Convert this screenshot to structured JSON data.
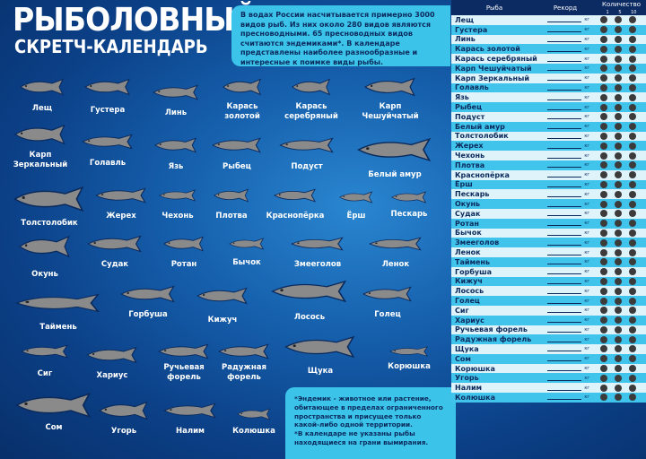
{
  "title": {
    "line1": "РЫБОЛОВНЫЙ",
    "line2": "СКРЕТЧ-КАЛЕНДАРЬ"
  },
  "info": "В водах России насчитывается примерно 3000 видов рыб. Из них около 280 видов являются пресноводными. 65 пресноводных видов считаются эндемиками*. В календаре представлены наиболее разнообразные и интересные к поимке виды рыбы.",
  "note": {
    "line1": "*Эндемик - животное или растение, обитающее в пределах ограниченного пространства и присущее только какой-либо одной территории.",
    "line2": "*В календаре не указаны рыбы находящиеся на грани вымирания."
  },
  "fish": [
    {
      "label": "Лещ"
    },
    {
      "label": "Густера"
    },
    {
      "label": "Линь"
    },
    {
      "label": "Карась золотой"
    },
    {
      "label": "Карась серебряный"
    },
    {
      "label": "Карп Чешуйчатый"
    },
    {
      "label": "Карп Зеркальный"
    },
    {
      "label": "Голавль"
    },
    {
      "label": "Язь"
    },
    {
      "label": "Рыбец"
    },
    {
      "label": "Подуст"
    },
    {
      "label": "Белый амур"
    },
    {
      "label": "Толстолобик"
    },
    {
      "label": "Жерех"
    },
    {
      "label": "Чехонь"
    },
    {
      "label": "Плотва"
    },
    {
      "label": "Краснопёрка"
    },
    {
      "label": "Ёрш"
    },
    {
      "label": "Пескарь"
    },
    {
      "label": "Окунь"
    },
    {
      "label": "Судак"
    },
    {
      "label": "Ротан"
    },
    {
      "label": "Бычок"
    },
    {
      "label": "Змееголов"
    },
    {
      "label": "Ленок"
    },
    {
      "label": "Таймень"
    },
    {
      "label": "Горбуша"
    },
    {
      "label": "Кижуч"
    },
    {
      "label": "Лосось"
    },
    {
      "label": "Голец"
    },
    {
      "label": "Сиг"
    },
    {
      "label": "Хариус"
    },
    {
      "label": "Ручьевая форель"
    },
    {
      "label": "Радужная форель"
    },
    {
      "label": "Щука"
    },
    {
      "label": "Корюшка"
    },
    {
      "label": "Сом"
    },
    {
      "label": "Угорь"
    },
    {
      "label": "Налим"
    },
    {
      "label": "Колюшка"
    }
  ],
  "table": {
    "headers": {
      "fish": "Рыба",
      "record": "Рекорд",
      "count": "Количество",
      "marks": [
        "1",
        "5",
        "10"
      ]
    },
    "unit": "кг",
    "rows": [
      "Лещ",
      "Густера",
      "Линь",
      "Карась золотой",
      "Карась серебряный",
      "Карп Чешуйчатый",
      "Карп Зеркальный",
      "Голавль",
      "Язь",
      "Рыбец",
      "Подуст",
      "Белый амур",
      "Толстолобик",
      "Жерех",
      "Чехонь",
      "Плотва",
      "Краснопёрка",
      "Ёрш",
      "Пескарь",
      "Окунь",
      "Судак",
      "Ротан",
      "Бычок",
      "Змееголов",
      "Ленок",
      "Таймень",
      "Горбуша",
      "Кижуч",
      "Лосось",
      "Голец",
      "Сиг",
      "Хариус",
      "Ручьевая форель",
      "Радужная форель",
      "Щука",
      "Сом",
      "Корюшка",
      "Угорь",
      "Налим",
      "Колюшка"
    ]
  },
  "colors": {
    "background": "#1660ad",
    "info_box": "#3cc3ea",
    "fish_silhouette": "#8a8a8a",
    "table_header": "#0d2b63",
    "scratch_dot": "#3b3b3b"
  }
}
